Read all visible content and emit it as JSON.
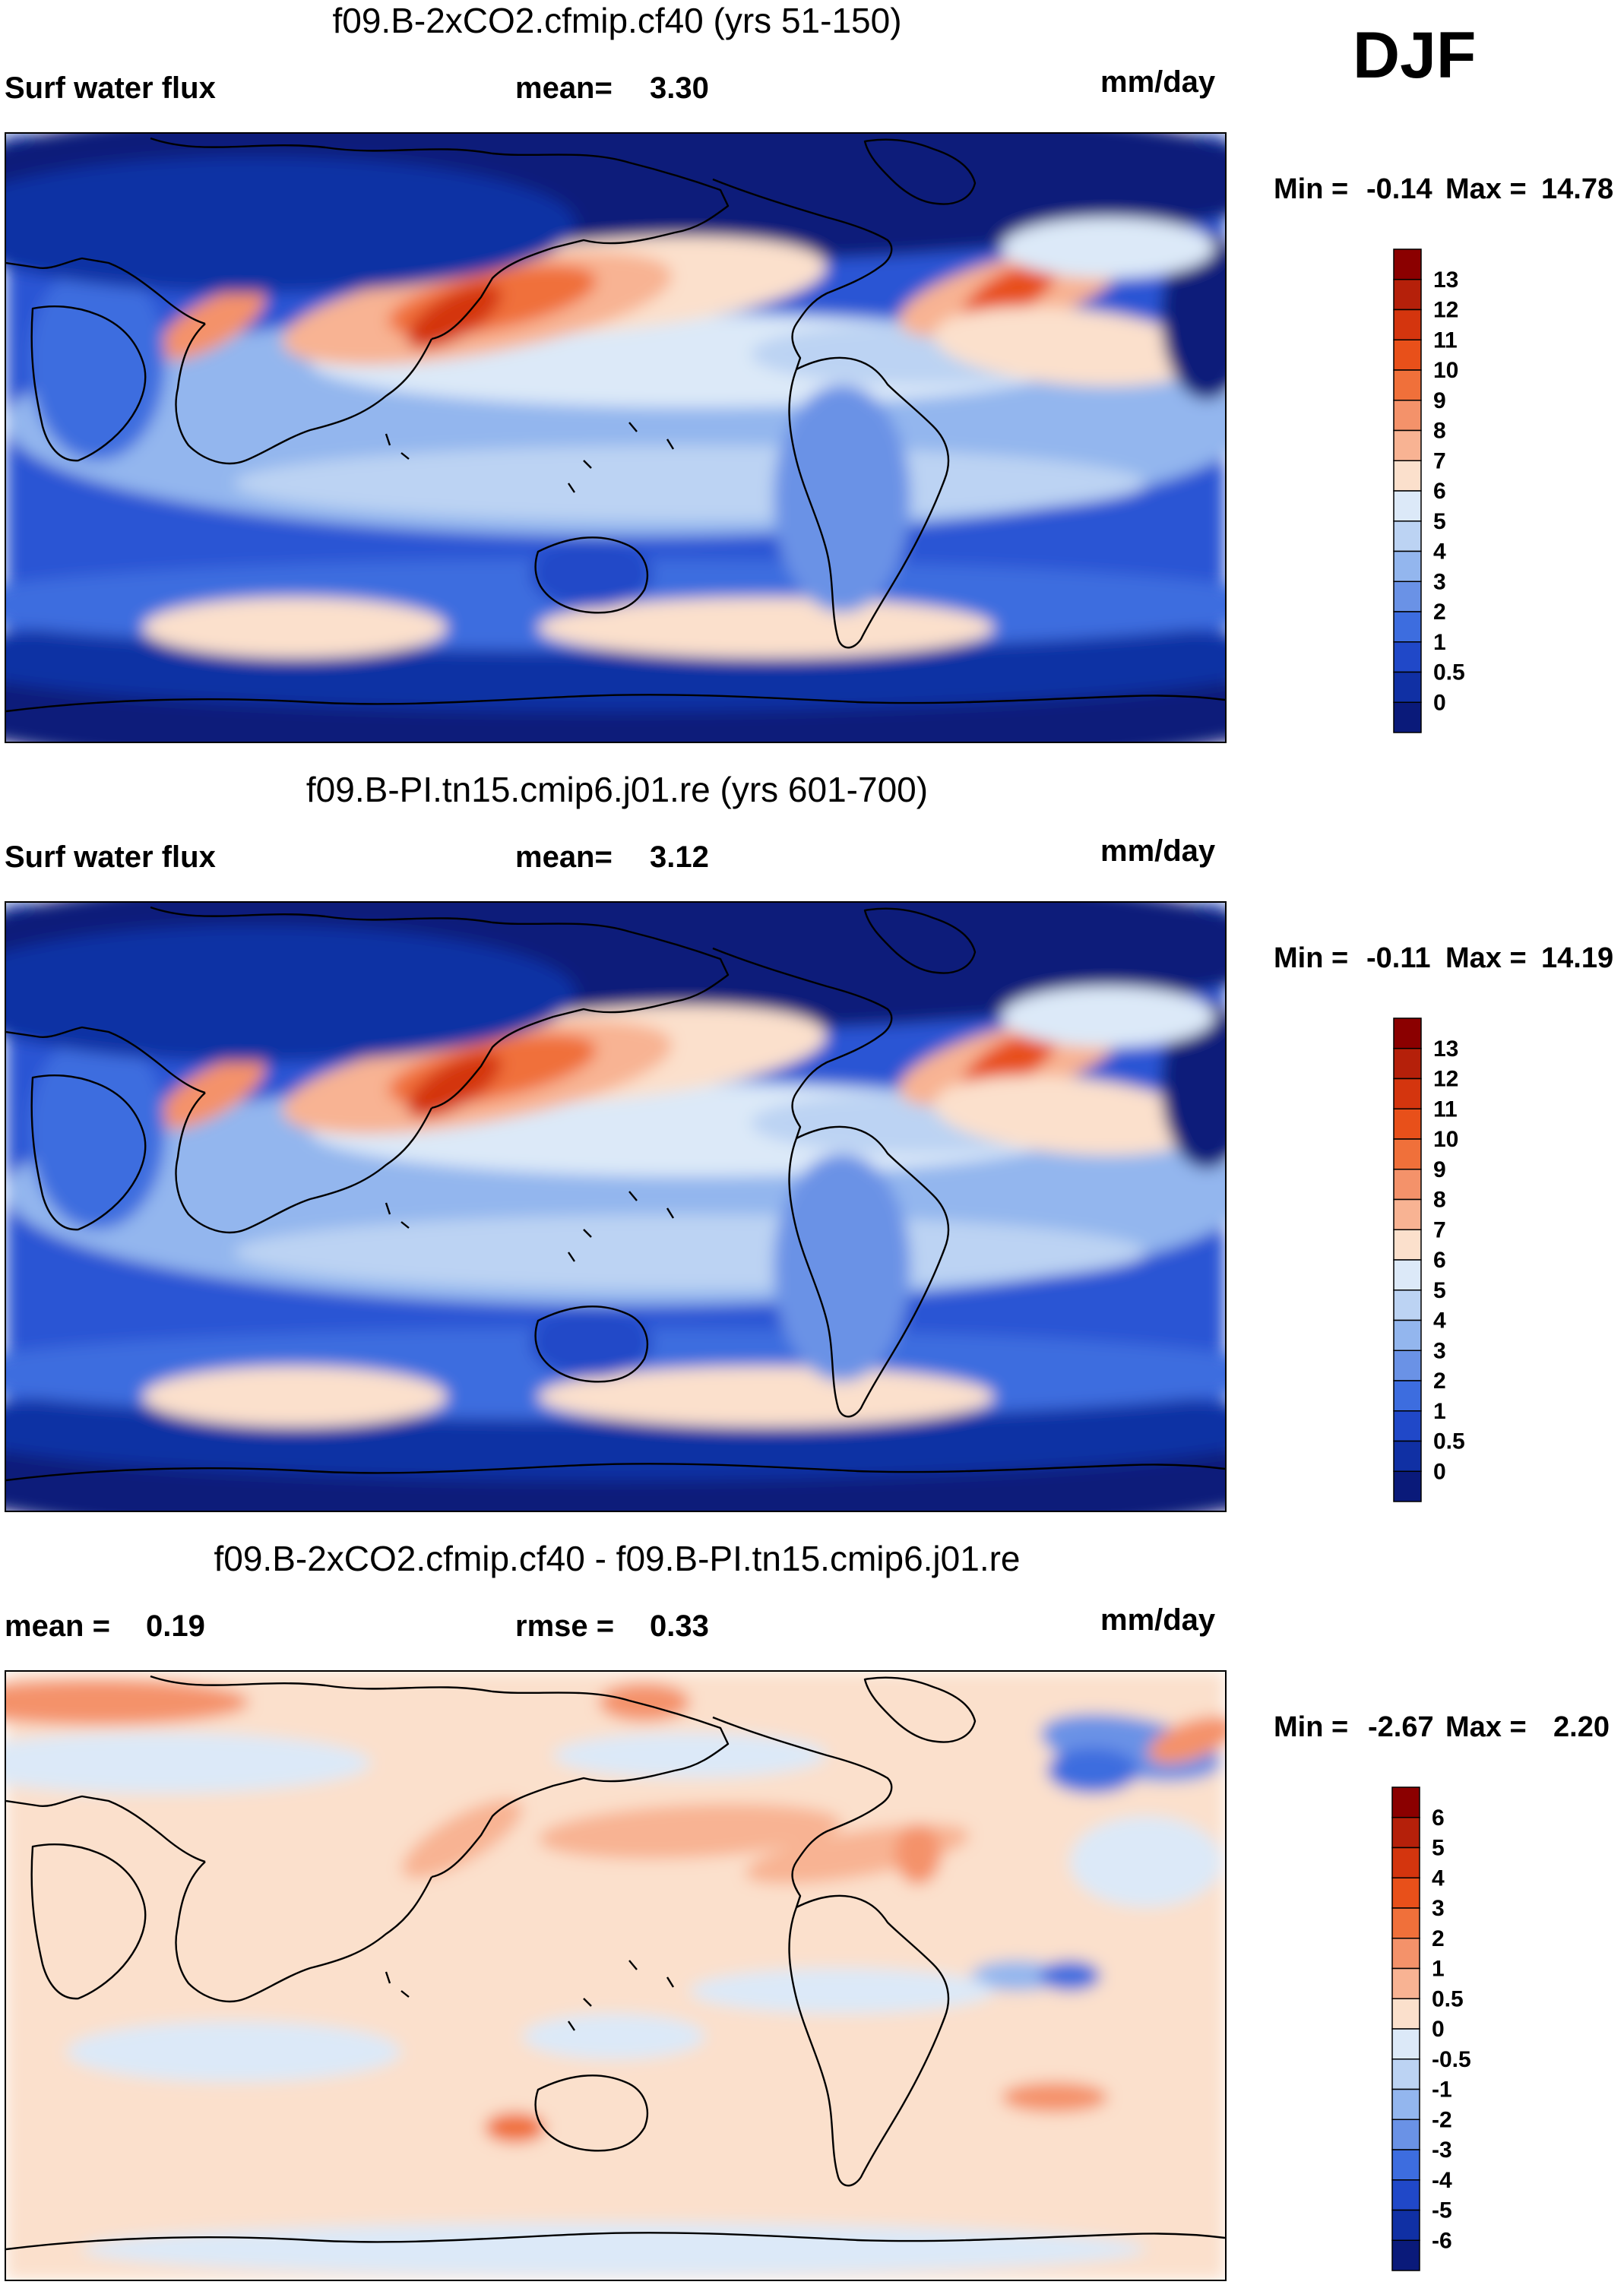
{
  "season": "DJF",
  "units": "mm/day",
  "chart_data": [
    {
      "type": "heatmap",
      "title": "f09.B-2xCO2.cfmip.cf40 (yrs 51-150)",
      "variable": "Surf water flux",
      "mean_label": "mean=",
      "mean": "3.30",
      "units": "mm/day",
      "minmax_label_min": "Min =",
      "min": "-0.14",
      "minmax_label_max": "Max =",
      "max": "14.78",
      "colorbar_levels": [
        "13",
        "12",
        "11",
        "10",
        "9",
        "8",
        "7",
        "6",
        "5",
        "4",
        "3",
        "2",
        "1",
        "0.5",
        "0"
      ],
      "colorbar_colors": [
        "#8b0000",
        "#b5200a",
        "#d4350e",
        "#e8501a",
        "#f0703a",
        "#f4926a",
        "#f8b393",
        "#fbe0cc",
        "#dce9f8",
        "#bcd3f3",
        "#93b6ee",
        "#6a92e6",
        "#3d6ddf",
        "#2048c8",
        "#1030a4",
        "#0a1a7a"
      ],
      "map_scheme": "abs"
    },
    {
      "type": "heatmap",
      "title": "f09.B-PI.tn15.cmip6.j01.re (yrs 601-700)",
      "variable": "Surf water flux",
      "mean_label": "mean=",
      "mean": "3.12",
      "units": "mm/day",
      "minmax_label_min": "Min =",
      "min": "-0.11",
      "minmax_label_max": "Max =",
      "max": "14.19",
      "colorbar_levels": [
        "13",
        "12",
        "11",
        "10",
        "9",
        "8",
        "7",
        "6",
        "5",
        "4",
        "3",
        "2",
        "1",
        "0.5",
        "0"
      ],
      "colorbar_colors": [
        "#8b0000",
        "#b5200a",
        "#d4350e",
        "#e8501a",
        "#f0703a",
        "#f4926a",
        "#f8b393",
        "#fbe0cc",
        "#dce9f8",
        "#bcd3f3",
        "#93b6ee",
        "#6a92e6",
        "#3d6ddf",
        "#2048c8",
        "#1030a4",
        "#0a1a7a"
      ],
      "map_scheme": "abs"
    },
    {
      "type": "heatmap",
      "title": "f09.B-2xCO2.cfmip.cf40 - f09.B-PI.tn15.cmip6.j01.re",
      "mean_label": "mean =",
      "mean": "0.19",
      "rmse_label": "rmse =",
      "rmse": "0.33",
      "units": "mm/day",
      "minmax_label_min": "Min =",
      "min": "-2.67",
      "minmax_label_max": "Max =",
      "max": "2.20",
      "colorbar_levels": [
        "6",
        "5",
        "4",
        "3",
        "2",
        "1",
        "0.5",
        "0",
        "-0.5",
        "-1",
        "-2",
        "-3",
        "-4",
        "-5",
        "-6"
      ],
      "colorbar_colors": [
        "#8b0000",
        "#b5200a",
        "#d4350e",
        "#e8501a",
        "#f0703a",
        "#f4926a",
        "#f8b393",
        "#fbe0cc",
        "#dce9f8",
        "#bcd3f3",
        "#93b6ee",
        "#6a92e6",
        "#3d6ddf",
        "#2048c8",
        "#1030a4",
        "#0a1a7a"
      ],
      "map_scheme": "diff"
    }
  ]
}
